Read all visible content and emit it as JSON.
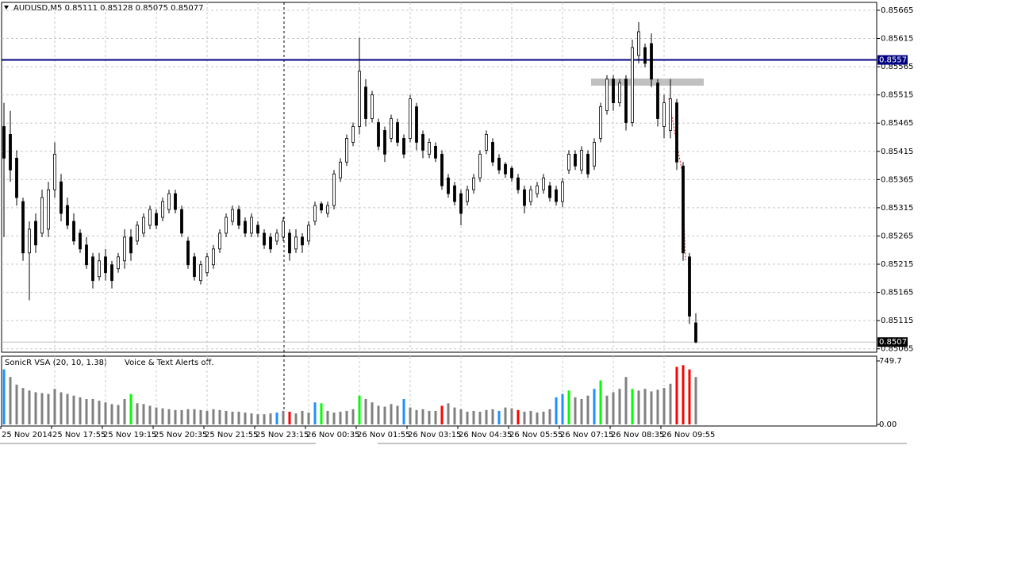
{
  "chart_data": {
    "type": "candlestick",
    "title": "AUDUSD,M5  0.85111 0.85128 0.85075 0.85077",
    "categories": [
      "25 Nov 2014",
      null,
      null,
      null,
      null,
      null,
      null,
      null,
      "25 Nov 17:55",
      null,
      null,
      null,
      null,
      null,
      null,
      null,
      "25 Nov 19:15",
      null,
      null,
      null,
      null,
      null,
      null,
      null,
      "25 Nov 20:35",
      null,
      null,
      null,
      null,
      null,
      null,
      null,
      "25 Nov 21:55",
      null,
      null,
      null,
      null,
      null,
      null,
      null,
      "25 Nov 23:15",
      null,
      null,
      null,
      null,
      null,
      null,
      null,
      "26 Nov 00:35",
      null,
      null,
      null,
      null,
      null,
      null,
      null,
      "26 Nov 01:55",
      null,
      null,
      null,
      null,
      null,
      null,
      null,
      "26 Nov 03:15",
      null,
      null,
      null,
      null,
      null,
      null,
      null,
      "26 Nov 04:35",
      null,
      null,
      null,
      null,
      null,
      null,
      null,
      "26 Nov 05:55",
      null,
      null,
      null,
      null,
      null,
      null,
      null,
      "26 Nov 07:15",
      null,
      null,
      null,
      null,
      null,
      null,
      null,
      "26 Nov 08:35",
      null,
      null,
      null,
      null,
      null,
      null,
      null,
      "26 Nov 09:55",
      null,
      null,
      null,
      null,
      null
    ],
    "open": [
      0.85459,
      0.85445,
      0.85403,
      0.85326,
      0.85235,
      0.85291,
      0.8527,
      0.85277,
      0.85347,
      0.85361,
      0.85319,
      0.85291,
      0.8527,
      0.85249,
      0.85228,
      0.85193,
      0.85228,
      0.85214,
      0.85207,
      0.85221,
      0.85263,
      0.85256,
      0.8527,
      0.85284,
      0.85305,
      0.85298,
      0.85312,
      0.8534,
      0.85312,
      0.85256,
      0.85228,
      0.85186,
      0.852,
      0.85214,
      0.85242,
      0.8527,
      0.85291,
      0.85312,
      0.85291,
      0.8527,
      0.85284,
      0.8527,
      0.85263,
      0.85256,
      0.85263,
      0.8527,
      0.85242,
      0.85263,
      0.85256,
      0.85291,
      0.85322,
      0.85305,
      0.85319,
      0.85368,
      0.85396,
      0.85431,
      0.85459,
      0.85529,
      0.85473,
      0.85466,
      0.85452,
      0.85438,
      0.85466,
      0.85438,
      0.85438,
      0.85494,
      0.85445,
      0.8541,
      0.85424,
      0.8541,
      0.85368,
      0.85354,
      0.8534,
      0.85326,
      0.85347,
      0.85368,
      0.85417,
      0.85431,
      0.85403,
      0.85392,
      0.85385,
      0.85368,
      0.85347,
      0.85326,
      0.8534,
      0.85347,
      0.85354,
      0.85347,
      0.85326,
      0.85382,
      0.8541,
      0.85382,
      0.8541,
      0.85389,
      0.85438,
      0.85487,
      0.85543,
      0.85501,
      0.85543,
      0.85466,
      0.85585,
      0.85599,
      0.85606,
      0.85536,
      0.85459,
      0.85452,
      0.85501,
      0.85389,
      0.85228,
      0.85111
    ],
    "high": [
      0.85501,
      0.85487,
      0.85417,
      0.85333,
      0.85291,
      0.85305,
      0.85347,
      0.85361,
      0.85431,
      0.85375,
      0.85333,
      0.85305,
      0.85277,
      0.85263,
      0.85235,
      0.85235,
      0.85242,
      0.85221,
      0.85235,
      0.85277,
      0.85277,
      0.85291,
      0.85305,
      0.85319,
      0.85312,
      0.85333,
      0.85347,
      0.85347,
      0.85319,
      0.85263,
      0.85235,
      0.85221,
      0.85235,
      0.85249,
      0.85277,
      0.85305,
      0.85319,
      0.85319,
      0.85298,
      0.85305,
      0.85291,
      0.85277,
      0.8527,
      0.85277,
      0.85298,
      0.85277,
      0.85277,
      0.8527,
      0.85291,
      0.85326,
      0.85326,
      0.85326,
      0.85382,
      0.85403,
      0.85445,
      0.85466,
      0.85616,
      0.85543,
      0.85522,
      0.85473,
      0.85459,
      0.8548,
      0.85473,
      0.85445,
      0.85515,
      0.85501,
      0.85452,
      0.85438,
      0.85431,
      0.85417,
      0.85375,
      0.85361,
      0.85347,
      0.85354,
      0.85375,
      0.85417,
      0.85452,
      0.85438,
      0.8541,
      0.85396,
      0.85389,
      0.85375,
      0.85354,
      0.85354,
      0.85361,
      0.85375,
      0.85361,
      0.85354,
      0.85368,
      0.85417,
      0.85417,
      0.85424,
      0.85417,
      0.85438,
      0.85501,
      0.8555,
      0.8555,
      0.85543,
      0.8555,
      0.85613,
      0.85644,
      0.85606,
      0.85624,
      0.85543,
      0.85515,
      0.85543,
      0.85508,
      0.85396,
      0.85235,
      0.85128
    ],
    "low": [
      0.85263,
      0.85361,
      0.85319,
      0.85221,
      0.85151,
      0.85235,
      0.85263,
      0.85263,
      0.85333,
      0.85291,
      0.85277,
      0.85249,
      0.85235,
      0.85207,
      0.85172,
      0.85186,
      0.85186,
      0.85172,
      0.852,
      0.85207,
      0.85221,
      0.85249,
      0.85263,
      0.85277,
      0.85277,
      0.85291,
      0.85305,
      0.85305,
      0.85263,
      0.85207,
      0.85186,
      0.85179,
      0.85193,
      0.85207,
      0.85235,
      0.85263,
      0.85284,
      0.85277,
      0.85263,
      0.85263,
      0.85263,
      0.85242,
      0.85235,
      0.85249,
      0.85256,
      0.85221,
      0.85235,
      0.85235,
      0.85249,
      0.85284,
      0.85305,
      0.85298,
      0.85312,
      0.85361,
      0.85389,
      0.85424,
      0.85445,
      0.85459,
      0.85466,
      0.85417,
      0.85396,
      0.85431,
      0.85424,
      0.85403,
      0.85431,
      0.85417,
      0.85403,
      0.85403,
      0.85396,
      0.85347,
      0.85333,
      0.85319,
      0.85284,
      0.85319,
      0.8534,
      0.85361,
      0.8541,
      0.85389,
      0.85375,
      0.85368,
      0.85361,
      0.8534,
      0.85305,
      0.85319,
      0.85333,
      0.8534,
      0.85326,
      0.85319,
      0.85316,
      0.85375,
      0.85382,
      0.85375,
      0.85368,
      0.85382,
      0.85431,
      0.8548,
      0.85487,
      0.85494,
      0.85452,
      0.85459,
      0.85571,
      0.85564,
      0.85529,
      0.85459,
      0.85438,
      0.85438,
      0.85382,
      0.85221,
      0.85109,
      0.85075
    ],
    "close": [
      0.85403,
      0.85382,
      0.85333,
      0.85235,
      0.85277,
      0.85249,
      0.85333,
      0.85347,
      0.8541,
      0.85305,
      0.85284,
      0.85256,
      0.85242,
      0.85214,
      0.85186,
      0.85221,
      0.852,
      0.85186,
      0.85228,
      0.85263,
      0.85235,
      0.85284,
      0.85298,
      0.85312,
      0.85284,
      0.85326,
      0.8534,
      0.85312,
      0.8527,
      0.85214,
      0.85193,
      0.85214,
      0.85228,
      0.85242,
      0.8527,
      0.85298,
      0.85312,
      0.85284,
      0.8527,
      0.85298,
      0.8527,
      0.85249,
      0.85242,
      0.8527,
      0.85291,
      0.85235,
      0.85263,
      0.85249,
      0.85284,
      0.85319,
      0.85311,
      0.85319,
      0.85375,
      0.85396,
      0.85438,
      0.85459,
      0.85557,
      0.85473,
      0.85515,
      0.85424,
      0.8541,
      0.85473,
      0.85431,
      0.8541,
      0.85508,
      0.85431,
      0.85417,
      0.85431,
      0.85403,
      0.85354,
      0.8534,
      0.85326,
      0.85305,
      0.85347,
      0.85368,
      0.8541,
      0.85445,
      0.85396,
      0.85382,
      0.85375,
      0.85368,
      0.85347,
      0.85319,
      0.85347,
      0.85354,
      0.85368,
      0.85333,
      0.85326,
      0.85361,
      0.8541,
      0.85389,
      0.85417,
      0.85375,
      0.85431,
      0.85494,
      0.85543,
      0.85501,
      0.85536,
      0.85466,
      0.85599,
      0.85627,
      0.85571,
      0.85543,
      0.85473,
      0.85501,
      0.85508,
      0.85396,
      0.85235,
      0.85123,
      0.85077
    ],
    "ylim": [
      0.85059,
      0.85679
    ],
    "yticks": [
      0.85665,
      0.85615,
      0.85565,
      0.85515,
      0.85465,
      0.85415,
      0.85365,
      0.85315,
      0.85265,
      0.85215,
      0.85165,
      0.85115,
      0.85065
    ],
    "grid": true,
    "level_line": {
      "value": 0.85577,
      "color": "#000080"
    },
    "last_price": 0.85077,
    "volume": {
      "title": "SonicR VSA  (20, 10, 1.38)",
      "note": "Voice & Text Alerts off.",
      "ylim": [
        0,
        749.7
      ],
      "yticks": [
        {
          "value": 0,
          "label": "0.00"
        },
        749.7
      ],
      "values": [
        650,
        560,
        470,
        430,
        400,
        380,
        370,
        360,
        420,
        380,
        360,
        340,
        320,
        300,
        300,
        280,
        260,
        240,
        230,
        300,
        360,
        250,
        240,
        220,
        200,
        190,
        180,
        170,
        170,
        180,
        180,
        170,
        160,
        180,
        170,
        160,
        150,
        150,
        140,
        130,
        120,
        120,
        130,
        140,
        160,
        150,
        130,
        160,
        140,
        260,
        250,
        160,
        140,
        150,
        160,
        180,
        340,
        300,
        260,
        220,
        210,
        240,
        220,
        300,
        200,
        170,
        180,
        160,
        160,
        220,
        250,
        200,
        180,
        150,
        160,
        150,
        170,
        180,
        160,
        200,
        190,
        170,
        150,
        160,
        140,
        150,
        180,
        320,
        360,
        400,
        320,
        300,
        340,
        420,
        520,
        340,
        380,
        420,
        560,
        420,
        400,
        420,
        390,
        410,
        430,
        480,
        680,
        700,
        650,
        560
      ],
      "colors": [
        "dodgerblue",
        "gray",
        "gray",
        "gray",
        "gray",
        "gray",
        "gray",
        "gray",
        "gray",
        "gray",
        "gray",
        "gray",
        "gray",
        "gray",
        "gray",
        "gray",
        "gray",
        "gray",
        "gray",
        "gray",
        "lime",
        "gray",
        "gray",
        "gray",
        "gray",
        "gray",
        "gray",
        "gray",
        "gray",
        "gray",
        "gray",
        "gray",
        "gray",
        "gray",
        "gray",
        "gray",
        "gray",
        "gray",
        "gray",
        "gray",
        "gray",
        "gray",
        "gray",
        "dodgerblue",
        "gray",
        "red",
        "gray",
        "gray",
        "gray",
        "dodgerblue",
        "lime",
        "gray",
        "gray",
        "gray",
        "gray",
        "gray",
        "lime",
        "gray",
        "gray",
        "gray",
        "gray",
        "gray",
        "gray",
        "dodgerblue",
        "gray",
        "gray",
        "gray",
        "gray",
        "gray",
        "red",
        "gray",
        "gray",
        "gray",
        "gray",
        "gray",
        "gray",
        "gray",
        "gray",
        "dodgerblue",
        "gray",
        "gray",
        "red",
        "gray",
        "gray",
        "gray",
        "gray",
        "gray",
        "dodgerblue",
        "dodgerblue",
        "lime",
        "gray",
        "gray",
        "gray",
        "dodgerblue",
        "lime",
        "gray",
        "gray",
        "gray",
        "gray",
        "lime",
        "gray",
        "gray",
        "gray",
        "gray",
        "gray",
        "gray",
        "red",
        "red",
        "red",
        "gray"
      ]
    }
  }
}
